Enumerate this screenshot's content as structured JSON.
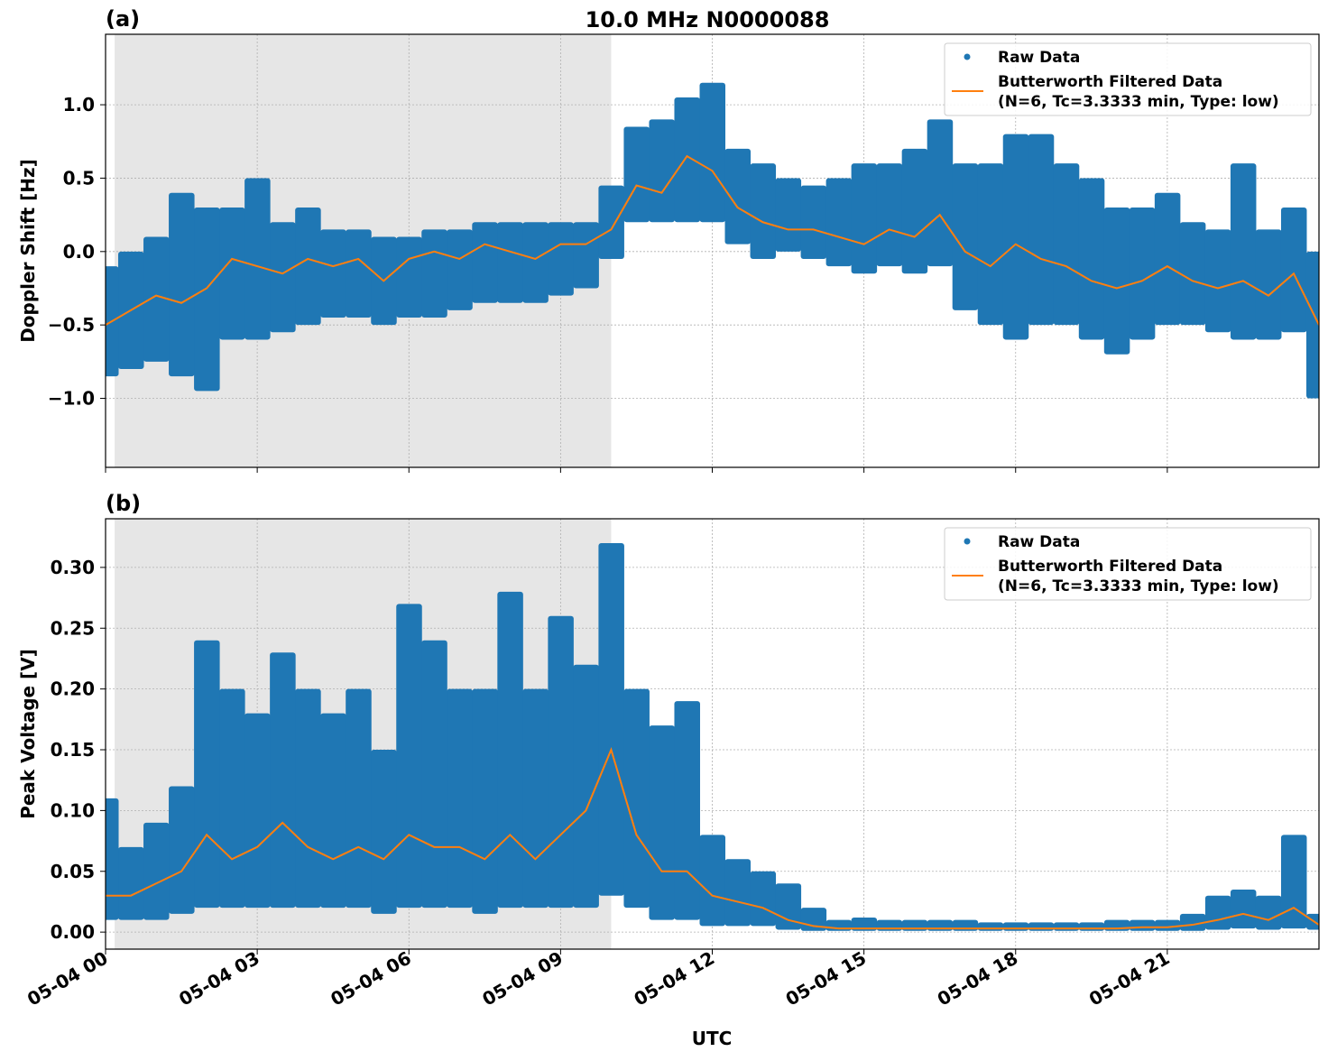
{
  "title": "10.0 MHz N0000088",
  "colors": {
    "raw": "#1f77b4",
    "filtered": "#ff7f0e",
    "shade": "#e6e6e6"
  },
  "legend": {
    "raw_label": "Raw Data",
    "filtered_label_1": "Butterworth Filtered Data",
    "filtered_label_2": "(N=6, Tc=3.3333 min, Type: low)",
    "placement": "top-right"
  },
  "xaxis": {
    "label": "UTC",
    "range_hours": [
      0,
      24
    ],
    "ticks": [
      {
        "hour": 0,
        "label": "05-04 00"
      },
      {
        "hour": 3,
        "label": "05-04 03"
      },
      {
        "hour": 6,
        "label": "05-04 06"
      },
      {
        "hour": 9,
        "label": "05-04 09"
      },
      {
        "hour": 12,
        "label": "05-04 12"
      },
      {
        "hour": 15,
        "label": "05-04 15"
      },
      {
        "hour": 18,
        "label": "05-04 18"
      },
      {
        "hour": 21,
        "label": "05-04 21"
      }
    ]
  },
  "chart_data": [
    {
      "type": "scatter+line",
      "panel_label": "(a)",
      "ylabel": "Doppler Shift [Hz]",
      "ylim": [
        -1.47,
        1.48
      ],
      "yticks": [
        {
          "v": 1.0,
          "label": "1.0"
        },
        {
          "v": 0.5,
          "label": "0.5"
        },
        {
          "v": 0.0,
          "label": "0.0"
        },
        {
          "v": -0.5,
          "label": "−0.5"
        },
        {
          "v": -1.0,
          "label": "−1.0"
        }
      ],
      "grid": true,
      "shaded_hours": [
        0.18,
        10.0
      ],
      "hours": [
        0,
        0.5,
        1,
        1.5,
        2,
        2.5,
        3,
        3.5,
        4,
        4.5,
        5,
        5.5,
        6,
        6.5,
        7,
        7.5,
        8,
        8.5,
        9,
        9.5,
        10,
        10.5,
        11,
        11.5,
        12,
        12.5,
        13,
        13.5,
        14,
        14.5,
        15,
        15.5,
        16,
        16.5,
        17,
        17.5,
        18,
        18.5,
        19,
        19.5,
        20,
        20.5,
        21,
        21.5,
        22,
        22.5,
        23,
        23.5,
        24
      ],
      "filtered": [
        -0.5,
        -0.4,
        -0.3,
        -0.35,
        -0.25,
        -0.05,
        -0.1,
        -0.15,
        -0.05,
        -0.1,
        -0.05,
        -0.2,
        -0.05,
        0.0,
        -0.05,
        0.05,
        0.0,
        -0.05,
        0.05,
        0.05,
        0.15,
        0.45,
        0.4,
        0.65,
        0.55,
        0.3,
        0.2,
        0.15,
        0.15,
        0.1,
        0.05,
        0.15,
        0.1,
        0.25,
        0.0,
        -0.1,
        0.05,
        -0.05,
        -0.1,
        -0.2,
        -0.25,
        -0.2,
        -0.1,
        -0.2,
        -0.25,
        -0.2,
        -0.3,
        -0.15,
        -0.5
      ],
      "raw_low": [
        -0.85,
        -0.8,
        -0.75,
        -0.85,
        -0.95,
        -0.6,
        -0.6,
        -0.55,
        -0.5,
        -0.45,
        -0.45,
        -0.5,
        -0.45,
        -0.45,
        -0.4,
        -0.35,
        -0.35,
        -0.35,
        -0.3,
        -0.25,
        -0.05,
        0.2,
        0.2,
        0.2,
        0.2,
        0.05,
        -0.05,
        0.0,
        -0.05,
        -0.1,
        -0.15,
        -0.1,
        -0.15,
        -0.1,
        -0.4,
        -0.5,
        -0.6,
        -0.5,
        -0.5,
        -0.6,
        -0.7,
        -0.6,
        -0.5,
        -0.5,
        -0.55,
        -0.6,
        -0.6,
        -0.55,
        -1.0
      ],
      "raw_high": [
        -0.1,
        0.0,
        0.1,
        0.4,
        0.3,
        0.3,
        0.5,
        0.2,
        0.3,
        0.15,
        0.15,
        0.1,
        0.1,
        0.15,
        0.15,
        0.2,
        0.2,
        0.2,
        0.2,
        0.2,
        0.45,
        0.85,
        0.9,
        1.05,
        1.15,
        0.7,
        0.6,
        0.5,
        0.45,
        0.5,
        0.6,
        0.6,
        0.7,
        0.9,
        0.6,
        0.6,
        0.8,
        0.8,
        0.6,
        0.5,
        0.3,
        0.3,
        0.4,
        0.2,
        0.15,
        0.6,
        0.15,
        0.3,
        0.0
      ]
    },
    {
      "type": "scatter+line",
      "panel_label": "(b)",
      "ylabel": "Peak Voltage [V]",
      "ylim": [
        -0.014,
        0.34
      ],
      "yticks": [
        {
          "v": 0.3,
          "label": "0.30"
        },
        {
          "v": 0.25,
          "label": "0.25"
        },
        {
          "v": 0.2,
          "label": "0.20"
        },
        {
          "v": 0.15,
          "label": "0.15"
        },
        {
          "v": 0.1,
          "label": "0.10"
        },
        {
          "v": 0.05,
          "label": "0.05"
        },
        {
          "v": 0.0,
          "label": "0.00"
        }
      ],
      "grid": true,
      "shaded_hours": [
        0.18,
        10.0
      ],
      "hours": [
        0,
        0.5,
        1,
        1.5,
        2,
        2.5,
        3,
        3.5,
        4,
        4.5,
        5,
        5.5,
        6,
        6.5,
        7,
        7.5,
        8,
        8.5,
        9,
        9.5,
        10,
        10.5,
        11,
        11.5,
        12,
        12.5,
        13,
        13.5,
        14,
        14.5,
        15,
        15.5,
        16,
        16.5,
        17,
        17.5,
        18,
        18.5,
        19,
        19.5,
        20,
        20.5,
        21,
        21.5,
        22,
        22.5,
        23,
        23.5,
        24
      ],
      "filtered": [
        0.03,
        0.03,
        0.04,
        0.05,
        0.08,
        0.06,
        0.07,
        0.09,
        0.07,
        0.06,
        0.07,
        0.06,
        0.08,
        0.07,
        0.07,
        0.06,
        0.08,
        0.06,
        0.08,
        0.1,
        0.15,
        0.08,
        0.05,
        0.05,
        0.03,
        0.025,
        0.02,
        0.01,
        0.005,
        0.003,
        0.003,
        0.003,
        0.003,
        0.003,
        0.003,
        0.003,
        0.003,
        0.003,
        0.003,
        0.003,
        0.003,
        0.004,
        0.004,
        0.006,
        0.01,
        0.015,
        0.01,
        0.02,
        0.006
      ],
      "raw_low": [
        0.01,
        0.01,
        0.01,
        0.015,
        0.02,
        0.02,
        0.02,
        0.02,
        0.02,
        0.02,
        0.02,
        0.015,
        0.02,
        0.02,
        0.02,
        0.015,
        0.02,
        0.02,
        0.02,
        0.02,
        0.03,
        0.02,
        0.01,
        0.01,
        0.005,
        0.005,
        0.005,
        0.002,
        0.001,
        0.001,
        0.001,
        0.001,
        0.001,
        0.001,
        0.001,
        0.001,
        0.001,
        0.001,
        0.001,
        0.001,
        0.001,
        0.001,
        0.001,
        0.001,
        0.002,
        0.003,
        0.002,
        0.003,
        0.002
      ],
      "raw_high": [
        0.11,
        0.07,
        0.09,
        0.12,
        0.24,
        0.2,
        0.18,
        0.23,
        0.2,
        0.18,
        0.2,
        0.15,
        0.27,
        0.24,
        0.2,
        0.2,
        0.28,
        0.2,
        0.26,
        0.22,
        0.32,
        0.2,
        0.17,
        0.19,
        0.08,
        0.06,
        0.05,
        0.04,
        0.02,
        0.01,
        0.012,
        0.01,
        0.01,
        0.01,
        0.01,
        0.008,
        0.008,
        0.008,
        0.008,
        0.008,
        0.01,
        0.01,
        0.01,
        0.015,
        0.03,
        0.035,
        0.03,
        0.08,
        0.015
      ]
    }
  ]
}
